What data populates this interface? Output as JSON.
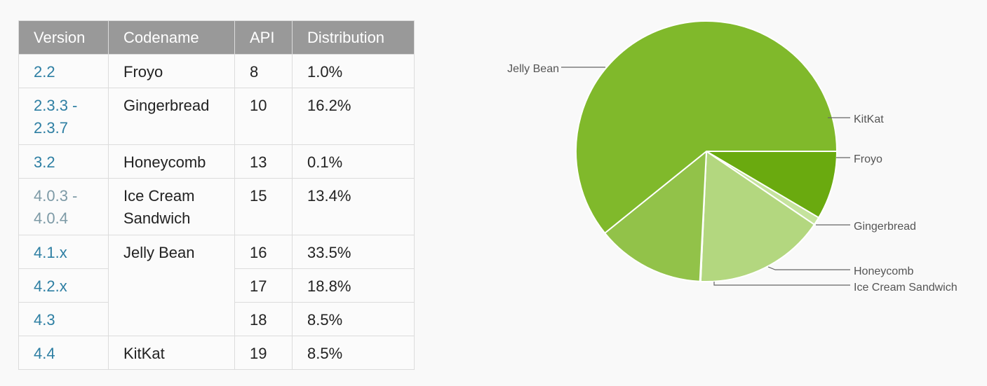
{
  "table": {
    "headers": [
      "Version",
      "Codename",
      "API",
      "Distribution"
    ],
    "rows": [
      {
        "version": "2.2",
        "codename": "Froyo",
        "api": "8",
        "distribution": "1.0%"
      },
      {
        "version": "2.3.3 -\n2.3.7",
        "codename": "Gingerbread",
        "api": "10",
        "distribution": "16.2%"
      },
      {
        "version": "3.2",
        "codename": "Honeycomb",
        "api": "13",
        "distribution": "0.1%"
      },
      {
        "version": "4.0.3 -\n4.0.4",
        "codename": "Ice Cream\nSandwich",
        "api": "15",
        "distribution": "13.4%"
      },
      {
        "version": "4.1.x",
        "codename": "Jelly Bean",
        "api": "16",
        "distribution": "33.5%"
      },
      {
        "version": "4.2.x",
        "codename": "",
        "api": "17",
        "distribution": "18.8%"
      },
      {
        "version": "4.3",
        "codename": "",
        "api": "18",
        "distribution": "8.5%"
      },
      {
        "version": "4.4",
        "codename": "KitKat",
        "api": "19",
        "distribution": "8.5%"
      }
    ]
  },
  "chart_data": {
    "type": "pie",
    "slices": [
      {
        "label": "KitKat",
        "value": 8.5,
        "color": "#6aaa0f"
      },
      {
        "label": "Froyo",
        "value": 1.0,
        "color": "#c5e39d"
      },
      {
        "label": "Gingerbread",
        "value": 16.2,
        "color": "#b3d77f"
      },
      {
        "label": "Honeycomb",
        "value": 0.1,
        "color": "#a6cf65"
      },
      {
        "label": "Ice Cream Sandwich",
        "value": 13.4,
        "color": "#92c249"
      },
      {
        "label": "Jelly Bean",
        "value": 60.8,
        "color": "#80b92b"
      }
    ]
  }
}
